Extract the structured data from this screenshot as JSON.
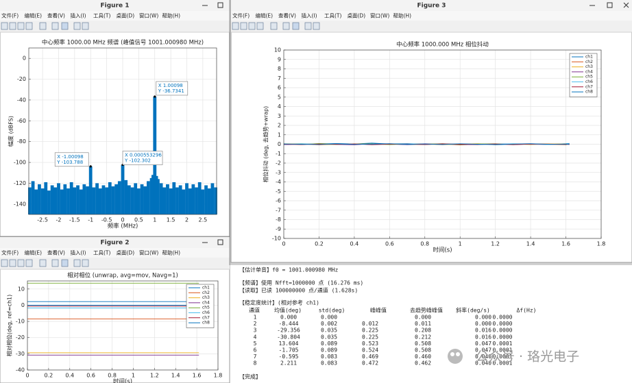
{
  "menu": [
    "文件(F)",
    "编辑(E)",
    "查看(V)",
    "插入(I)",
    "工具(T)",
    "桌面(D)",
    "窗口(W)",
    "帮助(H)"
  ],
  "figures": [
    {
      "window_title": "Figure 1",
      "chart": {
        "type": "area",
        "title": "中心频率 1000.00 MHz  频谱 (峰值信号 1001.000980 MHz)",
        "xlabel": "频率 (MHz)",
        "ylabel": "幅度 (dBFS)",
        "color": "#0072bd",
        "grid": true,
        "xlim": [
          -2.93,
          2.93
        ],
        "ylim": [
          -150,
          10
        ],
        "xticks": [
          -2.5,
          -2,
          -1.5,
          -1,
          -0.5,
          0,
          0.5,
          1,
          1.5,
          2,
          2.5
        ],
        "yticks": [
          -140,
          -120,
          -100,
          -80,
          -60,
          -40,
          -20,
          0
        ],
        "x": [
          -2.9,
          -2.8,
          -2.7,
          -2.6,
          -2.5,
          -2.4,
          -2.3,
          -2.2,
          -2.1,
          -2.0,
          -1.9,
          -1.8,
          -1.7,
          -1.6,
          -1.5,
          -1.4,
          -1.3,
          -1.2,
          -1.1,
          -1.00098,
          -0.9,
          -0.8,
          -0.7,
          -0.6,
          -0.5,
          -0.4,
          -0.3,
          -0.2,
          -0.1,
          0.000553296,
          0.1,
          0.2,
          0.3,
          0.4,
          0.5,
          0.6,
          0.7,
          0.8,
          0.9,
          0.95,
          1.00098,
          1.05,
          1.1,
          1.2,
          1.3,
          1.4,
          1.5,
          1.6,
          1.7,
          1.8,
          1.9,
          2.0,
          2.1,
          2.2,
          2.3,
          2.4,
          2.5,
          2.6,
          2.7,
          2.8,
          2.9
        ],
        "values": [
          -124,
          -118,
          -126,
          -121,
          -125,
          -119,
          -127,
          -122,
          -124,
          -120,
          -126,
          -121,
          -125,
          -119,
          -124,
          -122,
          -126,
          -121,
          -123,
          -103.788,
          -124,
          -120,
          -125,
          -122,
          -124,
          -119,
          -123,
          -121,
          -118,
          -102.302,
          -117,
          -122,
          -124,
          -120,
          -125,
          -121,
          -123,
          -118,
          -115,
          -112,
          -36.7341,
          -113,
          -116,
          -120,
          -124,
          -121,
          -125,
          -119,
          -124,
          -122,
          -126,
          -120,
          -125,
          -121,
          -124,
          -119,
          -126,
          -122,
          -125,
          -120,
          -124
        ],
        "datatips": [
          {
            "x": 1.00098,
            "y": -36.7341,
            "x_label": "X 1.00098",
            "y_label": "Y -36.7341"
          },
          {
            "x": -1.00098,
            "y": -103.788,
            "x_label": "X -1.00098",
            "y_label": "Y -103.788"
          },
          {
            "x": 0.000553296,
            "y": -102.302,
            "x_label": "X 0.000553296",
            "y_label": "Y -102.302"
          }
        ]
      }
    },
    {
      "window_title": "Figure 2",
      "chart": {
        "type": "line",
        "title": "相对相位 (unwrap, avg=mov, Navg=1)",
        "xlabel": "时间(s)",
        "ylabel": "相对相位(deg, ref=ch1)",
        "grid": true,
        "legend": "upper right",
        "xlim": [
          0,
          1.8
        ],
        "ylim": [
          -40,
          15
        ],
        "xticks": [
          0,
          0.2,
          0.4,
          0.6,
          0.8,
          1,
          1.2,
          1.4,
          1.6,
          1.8
        ],
        "yticks": [
          -40,
          -30,
          -20,
          -10,
          0,
          10
        ],
        "x": [
          0,
          1.62
        ],
        "series": [
          {
            "name": "ch1",
            "color": "#0072bd",
            "values": [
              0,
              0
            ]
          },
          {
            "name": "ch2",
            "color": "#d95319",
            "values": [
              -8.444,
              -8.444
            ]
          },
          {
            "name": "ch3",
            "color": "#edb120",
            "values": [
              -29.356,
              -29.356
            ]
          },
          {
            "name": "ch4",
            "color": "#7e2f8e",
            "values": [
              -30.804,
              -30.804
            ]
          },
          {
            "name": "ch5",
            "color": "#77ac30",
            "values": [
              13.604,
              13.604
            ]
          },
          {
            "name": "ch6",
            "color": "#4dbeee",
            "values": [
              -1.705,
              -1.705
            ]
          },
          {
            "name": "ch7",
            "color": "#a2142f",
            "values": [
              -0.595,
              -0.595
            ]
          },
          {
            "name": "ch8",
            "color": "#0072bd",
            "values": [
              2.211,
              2.211
            ]
          }
        ]
      }
    },
    {
      "window_title": "Figure 3",
      "chart": {
        "type": "line",
        "title": "中心频率 1000.000 MHz 相位抖动",
        "xlabel": "时间(s)",
        "ylabel": "相位抖动 (deg, 去趋势+wrap)",
        "grid": true,
        "legend": "upper right",
        "xlim": [
          0,
          1.8
        ],
        "ylim": [
          -10,
          10
        ],
        "xticks": [
          0,
          0.2,
          0.4,
          0.6,
          0.8,
          1,
          1.2,
          1.4,
          1.6,
          1.8
        ],
        "yticks": [
          -10,
          -9,
          -8,
          -7,
          -6,
          -5,
          -4,
          -3,
          -2,
          -1,
          0,
          1,
          2,
          3,
          4,
          5,
          6,
          7,
          8,
          9,
          10
        ],
        "x": [
          0,
          0.1,
          0.2,
          0.3,
          0.4,
          0.5,
          0.6,
          0.7,
          0.8,
          0.9,
          1.0,
          1.1,
          1.2,
          1.3,
          1.4,
          1.5,
          1.6,
          1.62
        ],
        "series": [
          {
            "name": "ch1",
            "color": "#0072bd",
            "values": [
              0.05,
              -0.02,
              0.04,
              0.08,
              0.03,
              0.12,
              0.02,
              -0.05,
              0.01,
              -0.03,
              0.02,
              0.04,
              -0.06,
              0.01,
              0.03,
              -0.02,
              0.06,
              0.09
            ]
          },
          {
            "name": "ch2",
            "color": "#d95319",
            "values": [
              -0.03,
              0.02,
              -0.06,
              0.01,
              0.04,
              -0.02,
              0.05,
              0.0,
              -0.04,
              0.02,
              -0.07,
              0.01,
              0.03,
              -0.03,
              0.0,
              0.04,
              -0.02,
              0.01
            ]
          },
          {
            "name": "ch3",
            "color": "#edb120",
            "values": [
              0.02,
              0.06,
              0.0,
              -0.04,
              0.05,
              0.01,
              -0.03,
              0.04,
              0.02,
              -0.05,
              0.01,
              0.06,
              -0.02,
              0.03,
              -0.04,
              0.02,
              0.05,
              0.0
            ]
          },
          {
            "name": "ch4",
            "color": "#7e2f8e",
            "values": [
              -0.05,
              0.01,
              0.03,
              -0.02,
              -0.06,
              0.04,
              0.0,
              -0.03,
              0.05,
              0.01,
              -0.02,
              -0.05,
              0.02,
              0.04,
              -0.01,
              -0.03,
              0.01,
              -0.04
            ]
          },
          {
            "name": "ch5",
            "color": "#77ac30",
            "values": [
              0.04,
              -0.03,
              0.07,
              0.02,
              -0.01,
              0.05,
              -0.04,
              0.03,
              0.0,
              0.06,
              -0.03,
              0.02,
              0.05,
              -0.02,
              0.04,
              0.01,
              -0.05,
              0.03
            ]
          },
          {
            "name": "ch6",
            "color": "#4dbeee",
            "values": [
              -0.02,
              0.05,
              -0.01,
              0.06,
              0.02,
              -0.04,
              0.03,
              0.07,
              -0.02,
              0.01,
              0.04,
              -0.03,
              0.0,
              0.05,
              0.02,
              -0.04,
              0.03,
              0.06
            ]
          },
          {
            "name": "ch7",
            "color": "#a2142f",
            "values": [
              0.01,
              -0.04,
              0.02,
              -0.01,
              0.03,
              -0.05,
              0.01,
              0.02,
              -0.03,
              0.04,
              0.0,
              -0.02,
              0.03,
              -0.05,
              0.02,
              0.0,
              -0.03,
              0.02
            ]
          },
          {
            "name": "ch8",
            "color": "#0072bd",
            "values": [
              0.03,
              0.0,
              -0.03,
              0.05,
              -0.02,
              0.02,
              0.06,
              -0.01,
              0.03,
              -0.04,
              0.05,
              0.0,
              -0.03,
              0.02,
              0.06,
              -0.01,
              0.02,
              -0.02
            ]
          }
        ]
      }
    }
  ],
  "console": {
    "lines": [
      "【估计单音】f0 = 1001.000980 MHz",
      "【频谱】使用 Nfft=1000000 点 (16.276 ms)",
      "【读取】已读 100000000 点/通道 (1.628s)",
      "【稳定度统计】(相对参考 ch1)"
    ],
    "table": {
      "header": [
        "通道",
        "均值(deg)",
        "std(deg)",
        "峰峰值",
        "去趋势峰峰值",
        "斜率(deg/s)",
        "Δf(Hz)"
      ],
      "rows": [
        [
          "1",
          "0.000",
          "0.000",
          null,
          "0.000",
          "0.000",
          "0.0000"
        ],
        [
          "2",
          "-8.444",
          "0.002",
          "0.012",
          "0.011",
          "0.000",
          "0.0000"
        ],
        [
          "3",
          "-29.356",
          "0.035",
          "0.225",
          "0.208",
          "0.016",
          "0.0000"
        ],
        [
          "4",
          "-30.804",
          "0.035",
          "0.225",
          "0.212",
          "0.016",
          "0.0000"
        ],
        [
          "5",
          "13.604",
          "0.089",
          "0.523",
          "0.508",
          "0.047",
          "0.0001"
        ],
        [
          "6",
          "-1.705",
          "0.089",
          "0.524",
          "0.508",
          "0.047",
          "0.0001"
        ],
        [
          "7",
          "-0.595",
          "0.083",
          "0.469",
          "0.460",
          "0.040",
          "0.0001"
        ],
        [
          "8",
          "2.211",
          "0.083",
          "0.472",
          "0.462",
          "0.040",
          "0.0001"
        ]
      ]
    },
    "done": "【完成】"
  },
  "watermark": "公众号 · 珞光电子"
}
